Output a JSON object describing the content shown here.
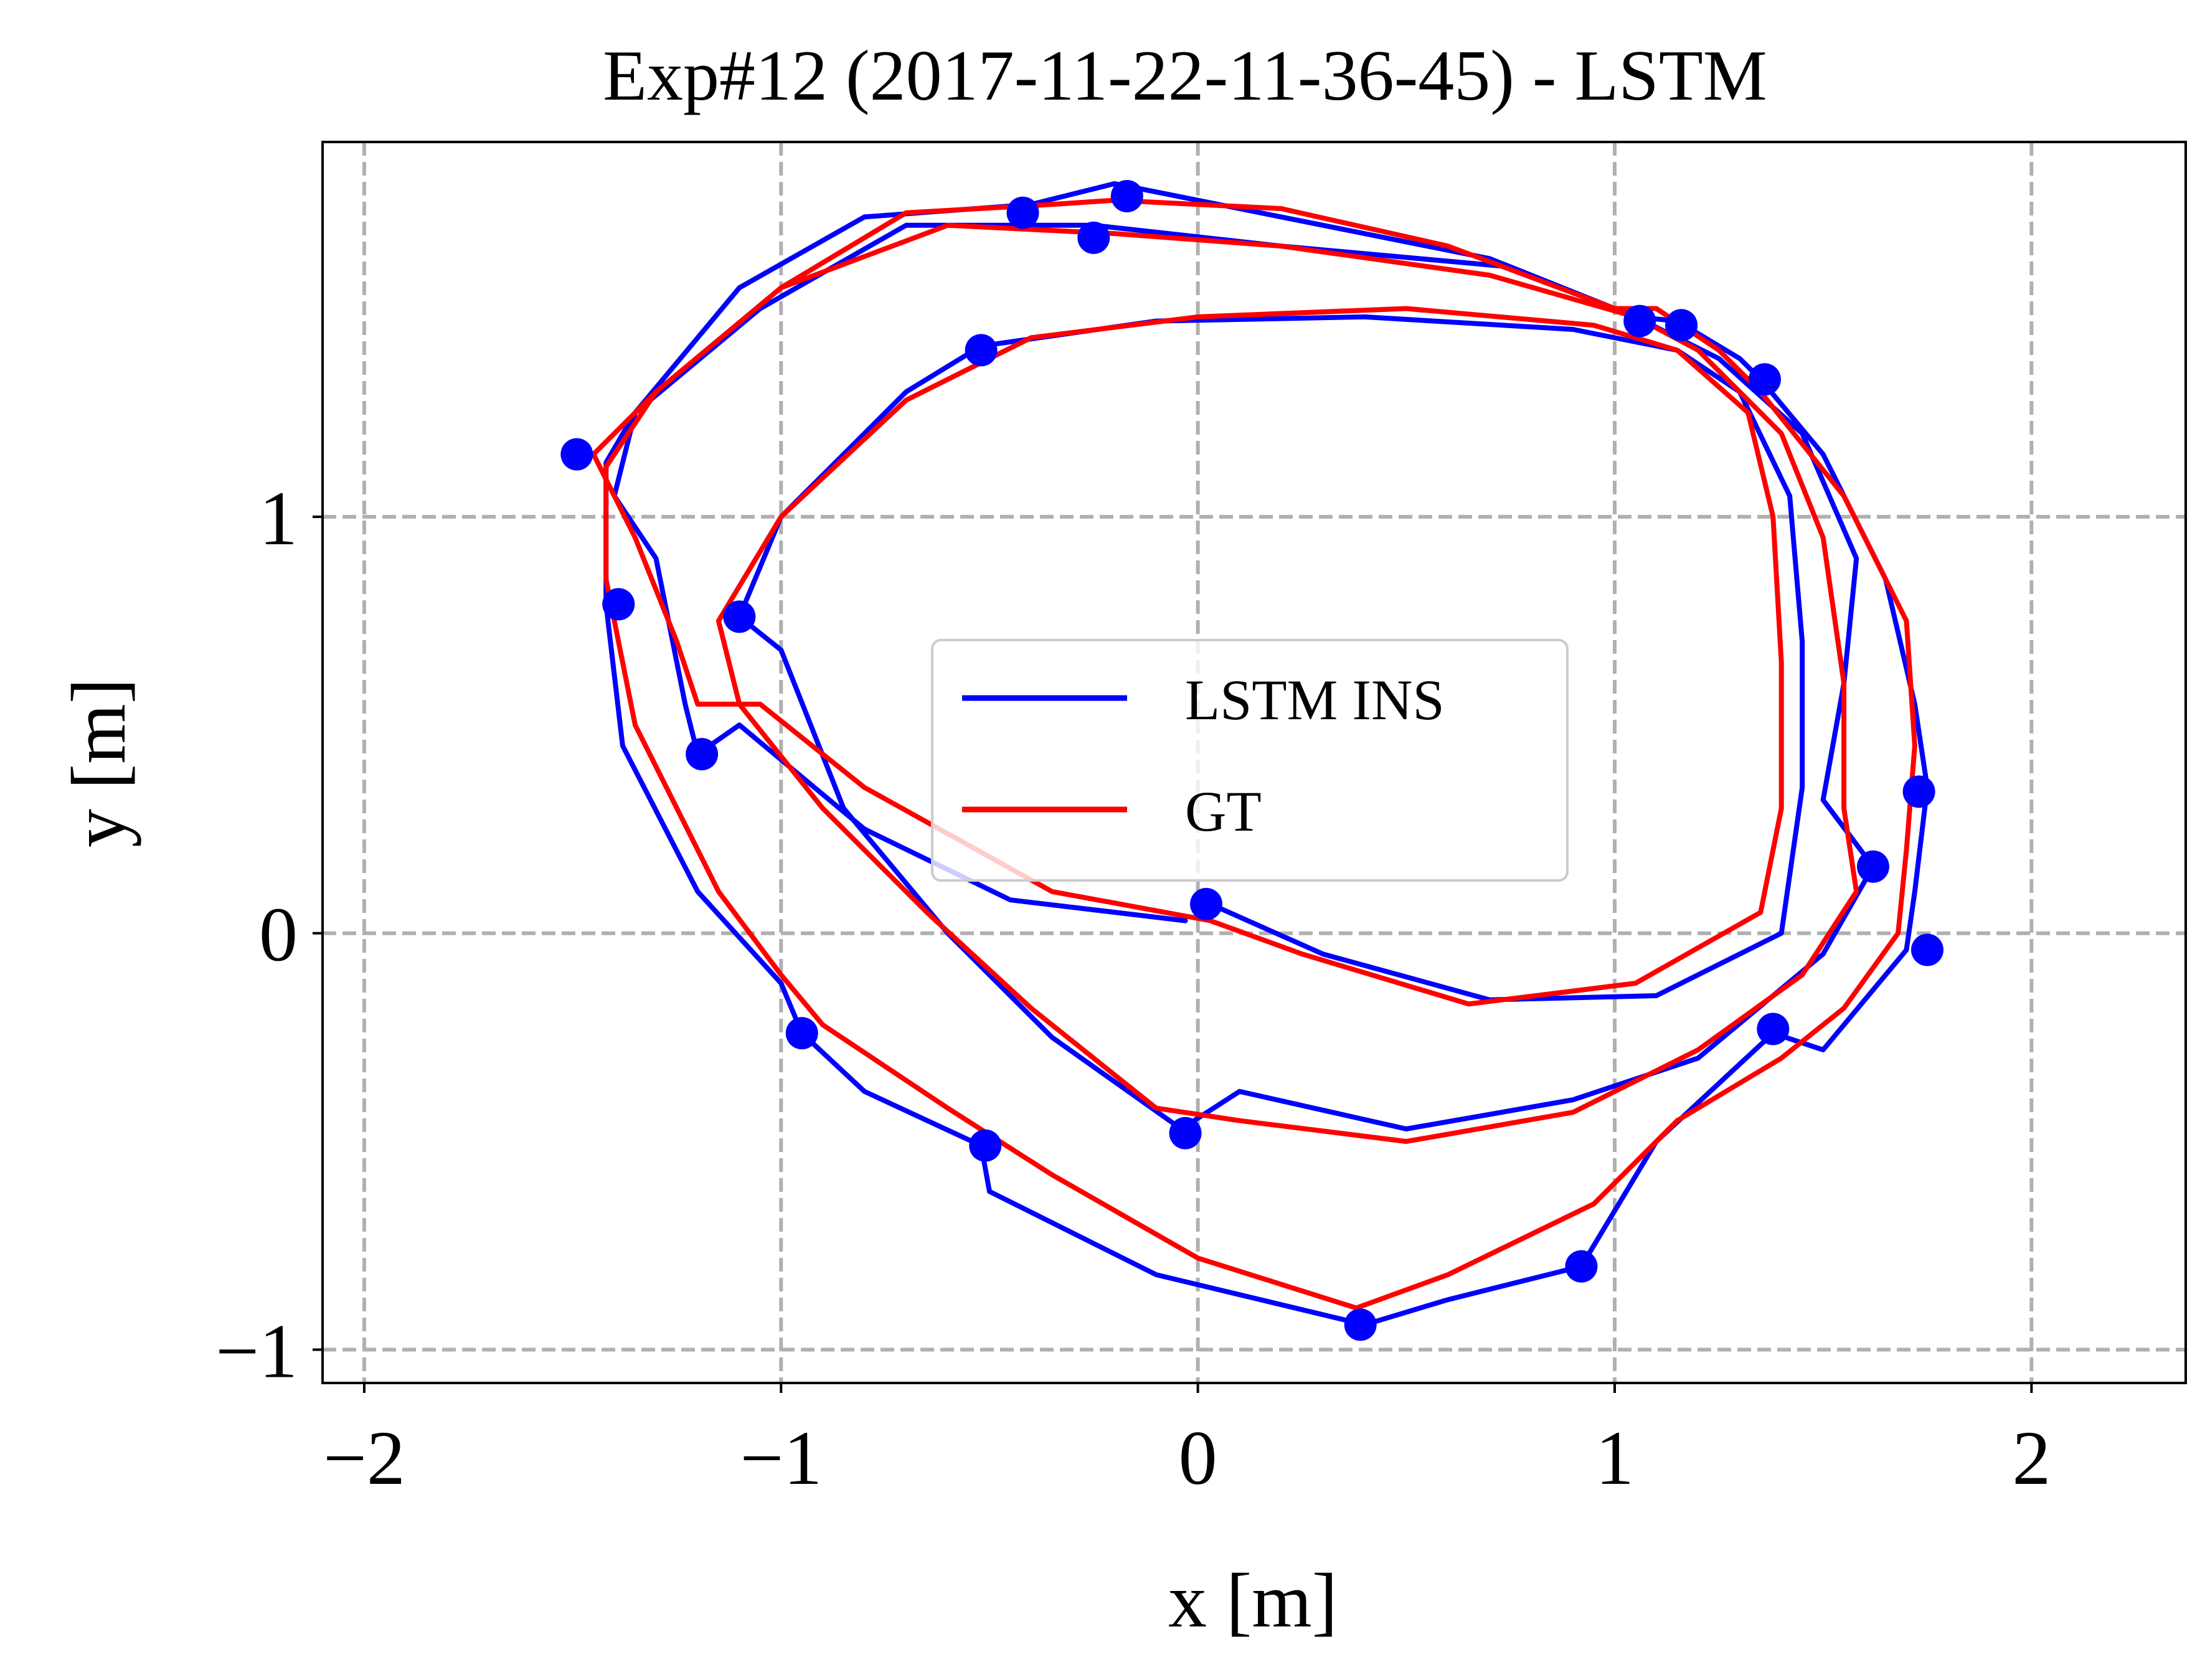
{
  "chart_data": {
    "type": "line",
    "title": "Exp#12 (2017-11-22-11-36-45) - LSTM",
    "xlabel": "x [m]",
    "ylabel": "y [m]",
    "xlim": [
      -2.1,
      2.37
    ],
    "ylim": [
      -1.08,
      1.9
    ],
    "xticks": [
      -2,
      -1,
      0,
      1,
      2
    ],
    "yticks": [
      -1,
      0,
      1
    ],
    "xtick_labels": [
      "−2",
      "−1",
      "0",
      "1",
      "2"
    ],
    "ytick_labels": [
      "−1",
      "0",
      "1"
    ],
    "grid": true,
    "legend_position": "center",
    "colors": {
      "lstm": "#0000ff",
      "gt": "#ff0000",
      "grid": "#b0b0b0"
    },
    "series": [
      {
        "name": "LSTM INS",
        "color": "#0000ff",
        "points": [
          [
            -0.03,
            0.03
          ],
          [
            -0.45,
            0.08
          ],
          [
            -0.8,
            0.25
          ],
          [
            -1.1,
            0.5
          ],
          [
            -1.2,
            0.43
          ],
          [
            -1.23,
            0.55
          ],
          [
            -1.3,
            0.9
          ],
          [
            -1.4,
            1.05
          ],
          [
            -1.35,
            1.25
          ],
          [
            -1.1,
            1.55
          ],
          [
            -0.8,
            1.72
          ],
          [
            -0.4,
            1.75
          ],
          [
            -0.2,
            1.8
          ],
          [
            0.2,
            1.72
          ],
          [
            0.7,
            1.62
          ],
          [
            1.05,
            1.48
          ],
          [
            1.15,
            1.47
          ],
          [
            1.3,
            1.38
          ],
          [
            1.35,
            1.33
          ],
          [
            1.5,
            1.15
          ],
          [
            1.65,
            0.85
          ],
          [
            1.72,
            0.55
          ],
          [
            1.75,
            0.35
          ],
          [
            1.72,
            0.1
          ],
          [
            1.7,
            -0.04
          ],
          [
            1.5,
            -0.28
          ],
          [
            1.38,
            -0.24
          ],
          [
            1.1,
            -0.5
          ],
          [
            0.92,
            -0.8
          ],
          [
            0.6,
            -0.88
          ],
          [
            0.4,
            -0.94
          ],
          [
            -0.1,
            -0.82
          ],
          [
            -0.5,
            -0.62
          ],
          [
            -0.52,
            -0.51
          ],
          [
            -0.8,
            -0.38
          ],
          [
            -0.95,
            -0.24
          ],
          [
            -1.0,
            -0.12
          ],
          [
            -1.2,
            0.1
          ],
          [
            -1.38,
            0.45
          ],
          [
            -1.42,
            0.79
          ],
          [
            -1.42,
            1.13
          ],
          [
            -1.35,
            1.25
          ],
          [
            -1.05,
            1.5
          ],
          [
            -0.7,
            1.7
          ],
          [
            -0.25,
            1.7
          ],
          [
            0.2,
            1.65
          ],
          [
            0.75,
            1.6
          ],
          [
            1.05,
            1.48
          ],
          [
            1.25,
            1.38
          ],
          [
            1.45,
            1.2
          ],
          [
            1.58,
            0.9
          ],
          [
            1.55,
            0.6
          ],
          [
            1.5,
            0.32
          ],
          [
            1.62,
            0.16
          ],
          [
            1.5,
            -0.05
          ],
          [
            1.2,
            -0.3
          ],
          [
            0.9,
            -0.4
          ],
          [
            0.5,
            -0.47
          ],
          [
            0.1,
            -0.38
          ],
          [
            -0.04,
            -0.47
          ],
          [
            -0.35,
            -0.25
          ],
          [
            -0.6,
            0.0
          ],
          [
            -0.85,
            0.3
          ],
          [
            -1.0,
            0.68
          ],
          [
            -1.1,
            0.76
          ],
          [
            -1.0,
            1.0
          ],
          [
            -0.7,
            1.3
          ],
          [
            -0.52,
            1.41
          ],
          [
            -0.1,
            1.47
          ],
          [
            0.4,
            1.48
          ],
          [
            0.9,
            1.45
          ],
          [
            1.15,
            1.4
          ],
          [
            1.3,
            1.3
          ],
          [
            1.42,
            1.05
          ],
          [
            1.45,
            0.7
          ],
          [
            1.45,
            0.35
          ],
          [
            1.4,
            0.0
          ],
          [
            1.1,
            -0.15
          ],
          [
            0.7,
            -0.16
          ],
          [
            0.3,
            -0.05
          ],
          [
            0.03,
            0.07
          ]
        ]
      },
      {
        "name": "GT",
        "color": "#ff0000",
        "points": [
          [
            0.03,
            0.03
          ],
          [
            -0.35,
            0.1
          ],
          [
            -0.8,
            0.35
          ],
          [
            -1.05,
            0.55
          ],
          [
            -1.2,
            0.55
          ],
          [
            -1.25,
            0.7
          ],
          [
            -1.35,
            0.95
          ],
          [
            -1.45,
            1.15
          ],
          [
            -1.3,
            1.3
          ],
          [
            -1.0,
            1.55
          ],
          [
            -0.7,
            1.73
          ],
          [
            -0.35,
            1.75
          ],
          [
            -0.2,
            1.76
          ],
          [
            0.2,
            1.74
          ],
          [
            0.6,
            1.65
          ],
          [
            1.0,
            1.5
          ],
          [
            1.1,
            1.5
          ],
          [
            1.25,
            1.4
          ],
          [
            1.35,
            1.3
          ],
          [
            1.55,
            1.05
          ],
          [
            1.7,
            0.75
          ],
          [
            1.72,
            0.45
          ],
          [
            1.7,
            0.2
          ],
          [
            1.68,
            0.0
          ],
          [
            1.55,
            -0.18
          ],
          [
            1.4,
            -0.3
          ],
          [
            1.15,
            -0.45
          ],
          [
            0.95,
            -0.65
          ],
          [
            0.6,
            -0.82
          ],
          [
            0.38,
            -0.9
          ],
          [
            0.0,
            -0.78
          ],
          [
            -0.35,
            -0.58
          ],
          [
            -0.6,
            -0.42
          ],
          [
            -0.9,
            -0.22
          ],
          [
            -1.0,
            -0.1
          ],
          [
            -1.15,
            0.1
          ],
          [
            -1.35,
            0.5
          ],
          [
            -1.42,
            0.85
          ],
          [
            -1.42,
            1.12
          ],
          [
            -1.3,
            1.3
          ],
          [
            -1.0,
            1.55
          ],
          [
            -0.6,
            1.7
          ],
          [
            -0.2,
            1.68
          ],
          [
            0.2,
            1.65
          ],
          [
            0.7,
            1.58
          ],
          [
            1.05,
            1.48
          ],
          [
            1.2,
            1.4
          ],
          [
            1.4,
            1.2
          ],
          [
            1.5,
            0.95
          ],
          [
            1.55,
            0.6
          ],
          [
            1.55,
            0.3
          ],
          [
            1.58,
            0.1
          ],
          [
            1.45,
            -0.1
          ],
          [
            1.2,
            -0.28
          ],
          [
            0.9,
            -0.43
          ],
          [
            0.5,
            -0.5
          ],
          [
            0.1,
            -0.45
          ],
          [
            -0.1,
            -0.42
          ],
          [
            -0.4,
            -0.18
          ],
          [
            -0.65,
            0.05
          ],
          [
            -0.9,
            0.3
          ],
          [
            -1.1,
            0.55
          ],
          [
            -1.15,
            0.75
          ],
          [
            -1.0,
            1.0
          ],
          [
            -0.7,
            1.28
          ],
          [
            -0.4,
            1.43
          ],
          [
            0.0,
            1.48
          ],
          [
            0.5,
            1.5
          ],
          [
            0.95,
            1.46
          ],
          [
            1.15,
            1.4
          ],
          [
            1.32,
            1.25
          ],
          [
            1.38,
            1.0
          ],
          [
            1.4,
            0.65
          ],
          [
            1.4,
            0.3
          ],
          [
            1.35,
            0.05
          ],
          [
            1.05,
            -0.12
          ],
          [
            0.65,
            -0.17
          ],
          [
            0.25,
            -0.05
          ],
          [
            0.03,
            0.03
          ]
        ]
      }
    ],
    "markers": [
      [
        -0.42,
        1.73
      ],
      [
        -0.17,
        1.77
      ],
      [
        -0.25,
        1.67
      ],
      [
        -0.52,
        1.4
      ],
      [
        -1.49,
        1.15
      ],
      [
        -1.39,
        0.79
      ],
      [
        -1.1,
        0.76
      ],
      [
        -1.19,
        0.43
      ],
      [
        -0.95,
        -0.24
      ],
      [
        -0.51,
        -0.51
      ],
      [
        -0.03,
        -0.48
      ],
      [
        0.02,
        0.07
      ],
      [
        0.39,
        -0.94
      ],
      [
        0.92,
        -0.8
      ],
      [
        1.16,
        1.46
      ],
      [
        1.06,
        1.47
      ],
      [
        1.36,
        1.33
      ],
      [
        1.73,
        0.34
      ],
      [
        1.62,
        0.16
      ],
      [
        1.75,
        -0.04
      ],
      [
        1.38,
        -0.23
      ]
    ]
  }
}
